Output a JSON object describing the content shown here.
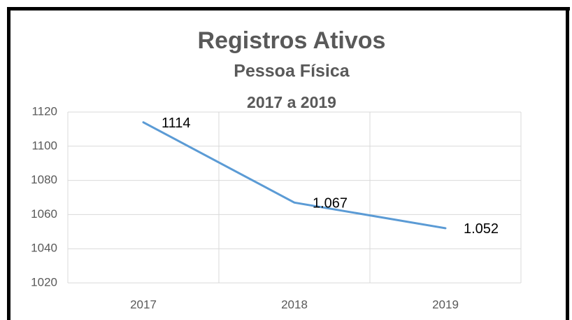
{
  "chart_data": {
    "type": "line",
    "title": "Registros Ativos",
    "subtitle": "Pessoa Física",
    "period": "2017 a 2019",
    "categories": [
      "2017",
      "2018",
      "2019"
    ],
    "values": [
      1114,
      1067,
      1052
    ],
    "value_labels": [
      "1114",
      "1.067",
      "1.052"
    ],
    "color": "#5b9bd5",
    "ylim": [
      1020,
      1120
    ],
    "yticks": [
      1020,
      1040,
      1060,
      1080,
      1100,
      1120
    ],
    "grid": true
  }
}
